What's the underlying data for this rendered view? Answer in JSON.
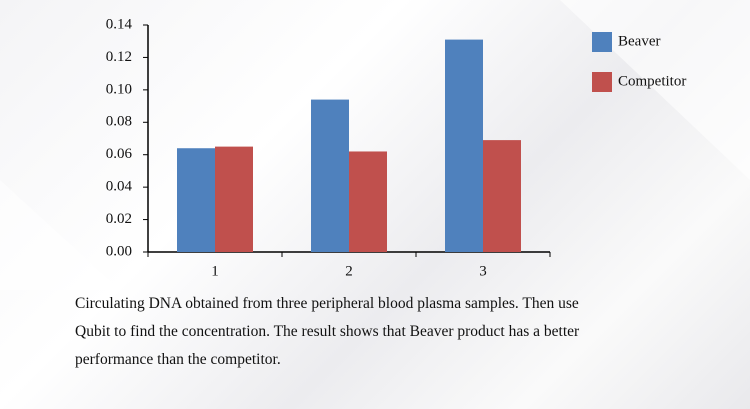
{
  "chart_data": {
    "type": "bar",
    "categories": [
      "1",
      "2",
      "3"
    ],
    "series": [
      {
        "name": "Beaver",
        "color": "#4f81bd",
        "values": [
          0.064,
          0.094,
          0.131
        ]
      },
      {
        "name": "Competitor",
        "color": "#c0504d",
        "values": [
          0.065,
          0.062,
          0.069
        ]
      }
    ],
    "ylim": [
      0,
      0.14
    ],
    "yticks": [
      {
        "value": 0,
        "label": "0.00"
      },
      {
        "value": 0.02,
        "label": "0.02"
      },
      {
        "value": 0.04,
        "label": "0.04"
      },
      {
        "value": 0.06,
        "label": "0.06"
      },
      {
        "value": 0.08,
        "label": "0.08"
      },
      {
        "value": 0.1,
        "label": "0.10"
      },
      {
        "value": 0.12,
        "label": "0.12"
      },
      {
        "value": 0.14,
        "label": "0.14"
      }
    ],
    "grid": false,
    "legend": "right"
  },
  "caption": [
    "Circulating DNA obtained from three peripheral blood plasma samples. Then use",
    "Qubit to find the concentration. The result shows that Beaver product has a better",
    "performance than the competitor."
  ]
}
